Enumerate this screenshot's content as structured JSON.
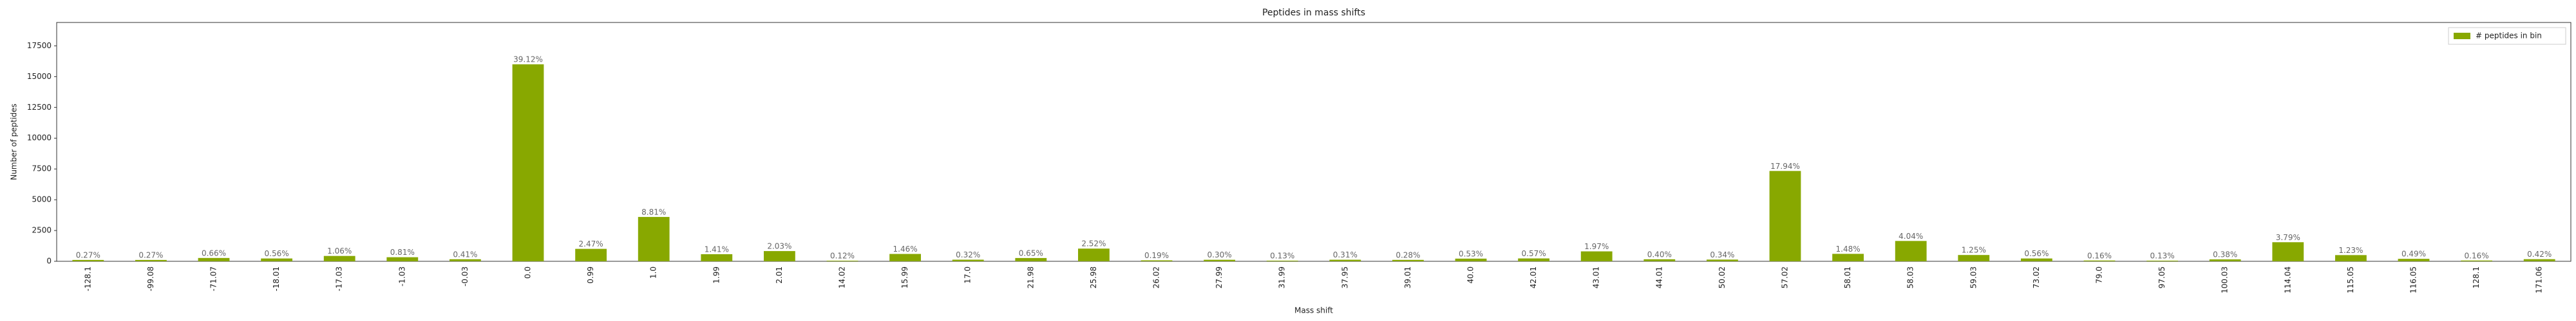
{
  "chart_data": {
    "type": "bar",
    "title": "Peptides in mass shifts",
    "x_label": "Mass shift",
    "y_label": "Number of peptides",
    "categories": [
      "-128.1",
      "-99.08",
      "-71.07",
      "-18.01",
      "-17.03",
      "-1.03",
      "-0.03",
      "0.0",
      "0.99",
      "1.0",
      "1.99",
      "2.01",
      "14.02",
      "15.99",
      "17.0",
      "21.98",
      "25.98",
      "26.02",
      "27.99",
      "31.99",
      "37.95",
      "39.01",
      "40.0",
      "42.01",
      "43.01",
      "44.01",
      "50.02",
      "57.02",
      "58.01",
      "58.03",
      "59.03",
      "73.02",
      "79.0",
      "97.05",
      "100.03",
      "114.04",
      "115.05",
      "116.05",
      "128.1",
      "171.06"
    ],
    "series": [
      {
        "name": "# peptides in bin",
        "color": "#88a800",
        "values": [
          110,
          110,
          270,
          229,
          434,
          331,
          168,
          16000,
          1010,
          3603,
          577,
          830,
          49,
          597,
          131,
          266,
          1031,
          78,
          123,
          53,
          127,
          115,
          217,
          233,
          806,
          164,
          139,
          7337,
          605,
          1652,
          511,
          229,
          65,
          53,
          155,
          1550,
          503,
          200,
          65,
          172
        ]
      }
    ],
    "annotations": [
      "0.27%",
      "0.27%",
      "0.66%",
      "0.56%",
      "1.06%",
      "0.81%",
      "0.41%",
      "39.12%",
      "2.47%",
      "8.81%",
      "1.41%",
      "2.03%",
      "0.12%",
      "1.46%",
      "0.32%",
      "0.65%",
      "2.52%",
      "0.19%",
      "0.30%",
      "0.13%",
      "0.31%",
      "0.28%",
      "0.53%",
      "0.57%",
      "1.97%",
      "0.40%",
      "0.34%",
      "17.94%",
      "1.48%",
      "4.04%",
      "1.25%",
      "0.56%",
      "0.16%",
      "0.13%",
      "0.38%",
      "3.79%",
      "1.23%",
      "0.49%",
      "0.16%",
      "0.42%"
    ],
    "ylim": [
      0,
      19400
    ],
    "yticks": [
      0,
      2500,
      5000,
      7500,
      10000,
      12500,
      15000,
      17500
    ],
    "legend": "upper right",
    "grid": false
  }
}
